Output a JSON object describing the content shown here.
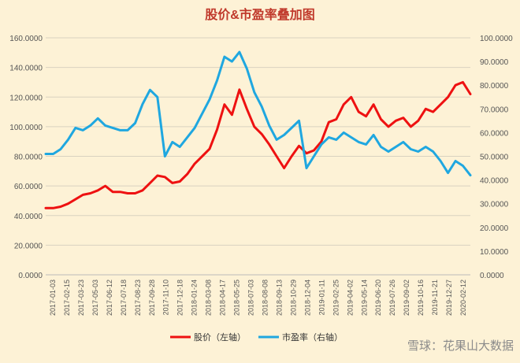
{
  "chart_data": {
    "type": "line",
    "title": "股价&市盈率叠加图",
    "watermark": "雪球：花果山大数据",
    "left_axis": {
      "ylim": [
        0,
        160
      ],
      "ticks": [
        "0.0000",
        "20.0000",
        "40.0000",
        "60.0000",
        "80.0000",
        "100.0000",
        "120.0000",
        "140.0000",
        "160.0000"
      ]
    },
    "right_axis": {
      "ylim": [
        0,
        100
      ],
      "ticks": [
        "0.0000",
        "10.0000",
        "20.0000",
        "30.0000",
        "40.0000",
        "50.0000",
        "60.0000",
        "70.0000",
        "80.0000",
        "90.0000",
        "100.0000"
      ]
    },
    "grid": true,
    "legend_position": "bottom",
    "x_ticks": [
      "2017-01-03",
      "2017-02-15",
      "2017-03-23",
      "2017-05-03",
      "2017-06-12",
      "2017-07-18",
      "2017-08-23",
      "2017-09-28",
      "2017-11-10",
      "2017-12-18",
      "2018-01-24",
      "2018-03-08",
      "2018-04-17",
      "2018-05-25",
      "2018-07-03",
      "2018-08-08",
      "2018-09-13",
      "2018-10-29",
      "2018-12-04",
      "2019-01-11",
      "2019-02-25",
      "2019-04-02",
      "2019-05-14",
      "2019-06-20",
      "2019-07-26",
      "2019-09-02",
      "2019-10-16",
      "2019-11-21",
      "2019-12-27",
      "2020-02-12"
    ],
    "series": [
      {
        "name": "股价（左轴）",
        "axis": "left",
        "color": "#ee1111",
        "values": [
          45,
          45,
          46,
          48,
          51,
          54,
          55,
          57,
          60,
          56,
          56,
          55,
          55,
          57,
          62,
          67,
          66,
          62,
          63,
          68,
          75,
          80,
          85,
          98,
          115,
          108,
          125,
          112,
          100,
          95,
          88,
          80,
          72,
          80,
          87,
          82,
          84,
          90,
          103,
          105,
          115,
          120,
          110,
          107,
          115,
          105,
          100,
          104,
          106,
          100,
          104,
          112,
          110,
          115,
          120,
          128,
          130,
          122
        ]
      },
      {
        "name": "市盈率（右轴）",
        "axis": "right",
        "color": "#1fa7e0",
        "values": [
          51,
          51,
          53,
          57,
          62,
          61,
          63,
          66,
          63,
          62,
          61,
          61,
          64,
          72,
          78,
          75,
          50,
          56,
          54,
          58,
          62,
          68,
          74,
          82,
          92,
          90,
          94,
          87,
          77,
          71,
          63,
          57,
          59,
          62,
          65,
          45,
          50,
          55,
          58,
          57,
          60,
          58,
          56,
          55,
          59,
          54,
          52,
          54,
          56,
          53,
          52,
          54,
          52,
          48,
          43,
          48,
          46,
          42
        ]
      }
    ]
  }
}
